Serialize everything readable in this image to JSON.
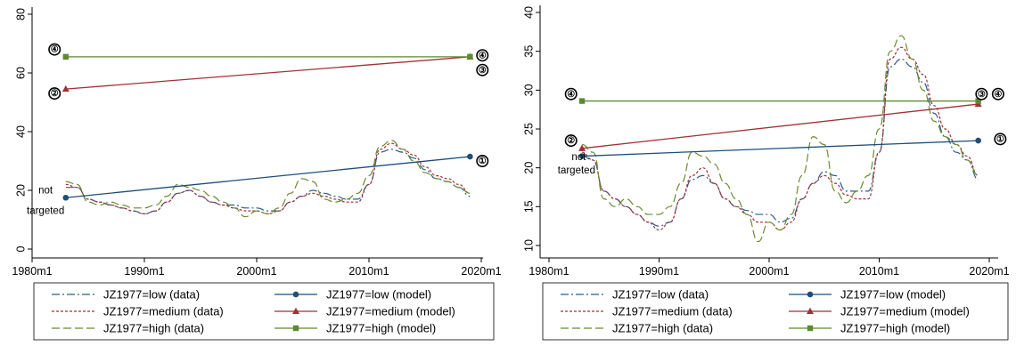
{
  "chart_data": [
    {
      "type": "line",
      "xlabel": "",
      "ylabel": "",
      "x_ticks": [
        "1980m1",
        "1990m1",
        "2000m1",
        "2010m1",
        "2020m1"
      ],
      "y_ticks": [
        "0",
        "20",
        "40",
        "60",
        "80"
      ],
      "xlim": [
        1980,
        2020
      ],
      "ylim": [
        0,
        80
      ],
      "grid": false,
      "legend_position": "bottom",
      "data_series": [
        {
          "name": "JZ1977=low (data)",
          "color": "#2b5e8c",
          "dash": "dashdot",
          "x": [
            1983,
            1984,
            1985,
            1986,
            1987,
            1988,
            1989,
            1990,
            1991,
            1992,
            1993,
            1994,
            1995,
            1996,
            1997,
            1998,
            1999,
            2000,
            2001,
            2002,
            2003,
            2004,
            2005,
            2006,
            2007,
            2008,
            2009,
            2010,
            2011,
            2012,
            2013,
            2014,
            2015,
            2016,
            2017,
            2018,
            2019
          ],
          "y": [
            21,
            21,
            17,
            16,
            15,
            14,
            13,
            12,
            13,
            16,
            19,
            20,
            18,
            16,
            15,
            15,
            14,
            14,
            13,
            13,
            16,
            18,
            20,
            19,
            18,
            17,
            17,
            22,
            33,
            34,
            33,
            31,
            27,
            24,
            23,
            21,
            18
          ]
        },
        {
          "name": "JZ1977=medium (data)",
          "color": "#a03236",
          "dash": "dot",
          "x": [
            1983,
            1984,
            1985,
            1986,
            1987,
            1988,
            1989,
            1990,
            1991,
            1992,
            1993,
            1994,
            1995,
            1996,
            1997,
            1998,
            1999,
            2000,
            2001,
            2002,
            2003,
            2004,
            2005,
            2006,
            2007,
            2008,
            2009,
            2010,
            2011,
            2012,
            2013,
            2014,
            2015,
            2016,
            2017,
            2018,
            2019
          ],
          "y": [
            22,
            21,
            17,
            16,
            15,
            14,
            13,
            12,
            13,
            16,
            19,
            20,
            18,
            16,
            15,
            14,
            13,
            13,
            12,
            13,
            16,
            18,
            19,
            18,
            17,
            16,
            16,
            22,
            34,
            36,
            34,
            32,
            28,
            25,
            24,
            22,
            19
          ]
        },
        {
          "name": "JZ1977=high (data)",
          "color": "#6a8b2e",
          "dash": "longdash",
          "x": [
            1983,
            1984,
            1985,
            1986,
            1987,
            1988,
            1989,
            1990,
            1991,
            1992,
            1993,
            1994,
            1995,
            1996,
            1997,
            1998,
            1999,
            2000,
            2001,
            2002,
            2003,
            2004,
            2005,
            2006,
            2007,
            2008,
            2009,
            2010,
            2011,
            2012,
            2013,
            2014,
            2015,
            2016,
            2017,
            2018,
            2019
          ],
          "y": [
            23,
            22,
            16,
            15,
            16,
            15,
            14,
            14,
            15,
            18,
            22,
            21,
            20,
            18,
            16,
            14,
            11,
            13,
            12,
            14,
            19,
            24,
            23,
            17,
            16,
            17,
            19,
            25,
            35,
            37,
            34,
            30,
            26,
            24,
            23,
            21,
            19
          ]
        }
      ],
      "model_series": [
        {
          "name": "JZ1977=low (model)",
          "color": "#1f4e79",
          "marker": "circle",
          "x": [
            1983,
            2019
          ],
          "y": [
            17.5,
            31.5
          ]
        },
        {
          "name": "JZ1977=medium (model)",
          "color": "#a03236",
          "marker": "triangle",
          "x": [
            1983,
            2019
          ],
          "y": [
            54.5,
            65.5
          ]
        },
        {
          "name": "JZ1977=high (model)",
          "color": "#5c8a2e",
          "marker": "square",
          "x": [
            1983,
            2019
          ],
          "y": [
            65.5,
            65.5
          ]
        }
      ],
      "annotations": [
        {
          "text": "④",
          "x": 1982,
          "y": 68
        },
        {
          "text": "②",
          "x": 1982,
          "y": 53
        },
        {
          "text": "④",
          "x": 2020.1,
          "y": 66
        },
        {
          "text": "③",
          "x": 2020.1,
          "y": 61
        },
        {
          "text": "①",
          "x": 2020.1,
          "y": 30
        },
        {
          "text": "not",
          "x": 1981.2,
          "y": 19
        },
        {
          "text": "targeted",
          "x": 1981.2,
          "y": 12
        }
      ]
    },
    {
      "type": "line",
      "xlabel": "",
      "ylabel": "",
      "x_ticks": [
        "1980m1",
        "1990m1",
        "2000m1",
        "2010m1",
        "2020m1"
      ],
      "y_ticks": [
        "10",
        "15",
        "20",
        "25",
        "30",
        "35",
        "40"
      ],
      "xlim": [
        1980,
        2020
      ],
      "ylim": [
        10,
        40
      ],
      "grid": false,
      "legend_position": "bottom",
      "data_series": [
        {
          "name": "JZ1977=low (data)",
          "color": "#2b5e8c",
          "dash": "dashdot",
          "x": [
            1983,
            1984,
            1985,
            1986,
            1987,
            1988,
            1989,
            1990,
            1991,
            1992,
            1993,
            1994,
            1995,
            1996,
            1997,
            1998,
            1999,
            2000,
            2001,
            2002,
            2003,
            2004,
            2005,
            2006,
            2007,
            2008,
            2009,
            2010,
            2011,
            2012,
            2013,
            2014,
            2015,
            2016,
            2017,
            2018,
            2019
          ],
          "y": [
            21.5,
            21,
            17,
            16,
            15,
            14,
            13,
            12.5,
            13,
            16,
            18.5,
            19,
            18,
            16,
            15,
            14.5,
            14,
            14,
            13,
            13.5,
            16,
            18,
            19.5,
            19,
            17,
            17,
            17,
            22,
            33,
            34,
            33,
            31,
            27,
            24,
            22,
            21,
            18.5
          ]
        },
        {
          "name": "JZ1977=medium (data)",
          "color": "#a03236",
          "dash": "dot",
          "x": [
            1983,
            1984,
            1985,
            1986,
            1987,
            1988,
            1989,
            1990,
            1991,
            1992,
            1993,
            1994,
            1995,
            1996,
            1997,
            1998,
            1999,
            2000,
            2001,
            2002,
            2003,
            2004,
            2005,
            2006,
            2007,
            2008,
            2009,
            2010,
            2011,
            2012,
            2013,
            2014,
            2015,
            2016,
            2017,
            2018,
            2019
          ],
          "y": [
            22,
            21,
            17,
            16,
            15,
            14,
            13,
            12,
            13,
            16,
            19,
            20,
            18,
            16,
            15,
            14,
            13,
            13,
            12,
            13,
            16,
            18,
            19,
            18,
            16.5,
            16,
            16,
            22,
            34,
            35.5,
            34,
            32,
            28,
            25,
            23,
            21.5,
            19
          ]
        },
        {
          "name": "JZ1977=high (data)",
          "color": "#6a8b2e",
          "dash": "longdash",
          "x": [
            1983,
            1984,
            1985,
            1986,
            1987,
            1988,
            1989,
            1990,
            1991,
            1992,
            1993,
            1994,
            1995,
            1996,
            1997,
            1998,
            1999,
            2000,
            2001,
            2002,
            2003,
            2004,
            2005,
            2006,
            2007,
            2008,
            2009,
            2010,
            2011,
            2012,
            2013,
            2014,
            2015,
            2016,
            2017,
            2018,
            2019
          ],
          "y": [
            23,
            22,
            16,
            15,
            16,
            15,
            14,
            14,
            15,
            18,
            22,
            21.5,
            20.5,
            18,
            16,
            14,
            10.5,
            13,
            12,
            14,
            19,
            24,
            23,
            17,
            15.5,
            17,
            19,
            25,
            35,
            37,
            34,
            30,
            26,
            24,
            23,
            21,
            19
          ]
        }
      ],
      "model_series": [
        {
          "name": "JZ1977=low (model)",
          "color": "#1f4e79",
          "marker": "circle",
          "x": [
            1983,
            2019
          ],
          "y": [
            21.5,
            23.5
          ]
        },
        {
          "name": "JZ1977=medium (model)",
          "color": "#a03236",
          "marker": "triangle",
          "x": [
            1983,
            2019
          ],
          "y": [
            22.5,
            28.2
          ]
        },
        {
          "name": "JZ1977=high (model)",
          "color": "#5c8a2e",
          "marker": "square",
          "x": [
            1983,
            2019
          ],
          "y": [
            28.6,
            28.6
          ]
        }
      ],
      "annotations": [
        {
          "text": "④",
          "x": 1982,
          "y": 29.5
        },
        {
          "text": "②",
          "x": 1982,
          "y": 23.5
        },
        {
          "text": "③",
          "x": 2019.3,
          "y": 29.5
        },
        {
          "text": "④",
          "x": 2020.8,
          "y": 29.5
        },
        {
          "text": "①",
          "x": 2021,
          "y": 23.7
        },
        {
          "text": "not",
          "x": 1982.7,
          "y": 21
        },
        {
          "text": "targeted",
          "x": 1982.5,
          "y": 19.3
        }
      ]
    }
  ],
  "legend": {
    "entries": [
      {
        "label": "JZ1977=low (data)",
        "color": "#2b5e8c",
        "dash": "dashdot",
        "marker": "none"
      },
      {
        "label": "JZ1977=low (model)",
        "color": "#1f4e79",
        "dash": "solid",
        "marker": "circle"
      },
      {
        "label": "JZ1977=medium (data)",
        "color": "#a03236",
        "dash": "dot",
        "marker": "none"
      },
      {
        "label": "JZ1977=medium (model)",
        "color": "#a03236",
        "dash": "solid",
        "marker": "triangle"
      },
      {
        "label": "JZ1977=high (data)",
        "color": "#6a8b2e",
        "dash": "longdash",
        "marker": "none"
      },
      {
        "label": "JZ1977=high (model)",
        "color": "#5c8a2e",
        "dash": "solid",
        "marker": "square"
      }
    ]
  }
}
